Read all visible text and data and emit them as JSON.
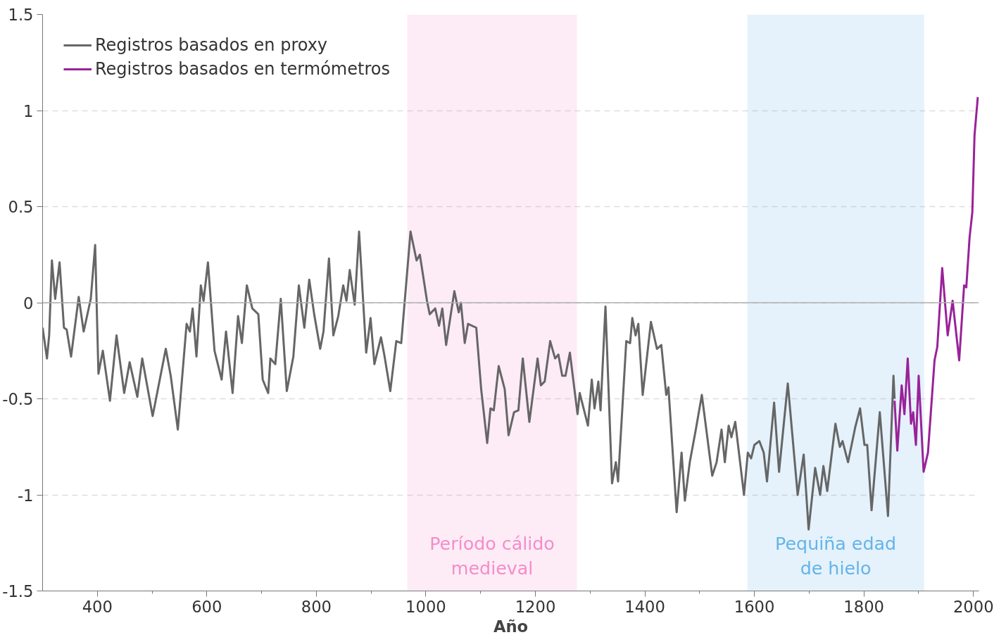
{
  "chart_data": {
    "type": "line",
    "xlabel": "Año",
    "xlim": [
      300,
      2010
    ],
    "ylim": [
      -1.5,
      1.5
    ],
    "xticks": [
      400,
      {
        "value": 500,
        "label": null
      },
      600,
      {
        "value": 700,
        "label": null
      },
      800,
      {
        "value": 900,
        "label": null
      },
      1000,
      {
        "value": 1100,
        "label": null
      },
      1200,
      {
        "value": 1300,
        "label": null
      },
      1400,
      {
        "value": 1500,
        "label": null
      },
      1600,
      {
        "value": 1700,
        "label": null
      },
      1800,
      {
        "value": 1900,
        "label": null
      },
      2000
    ],
    "yticks": [
      -1.5,
      -1,
      -0.5,
      0,
      0.5,
      1,
      1.5
    ],
    "grid": "y",
    "legend": "top left",
    "line_style": "solid",
    "marker": "none",
    "ref_lines": [
      {
        "axis": "y",
        "value": 0,
        "color": "#b0b0b0",
        "line_style": "solid"
      }
    ],
    "bands": [
      {
        "axis": "x",
        "from": 966,
        "to": 1276,
        "label": "Período cálido medieval",
        "color": "#f58ccb"
      },
      {
        "axis": "x",
        "from": 1587,
        "to": 1910,
        "label": "Pequiña edad de hielo",
        "color": "#64b4ea"
      }
    ],
    "series": [
      {
        "name": "Registros basados en proxy",
        "color": "#666666",
        "x": [
          300,
          308,
          312,
          317,
          323,
          331,
          339,
          344,
          352,
          366,
          375,
          388,
          396,
          402,
          410,
          423,
          435,
          449,
          459,
          473,
          482,
          501,
          525,
          534,
          547,
          563,
          569,
          574,
          581,
          589,
          594,
          602,
          614,
          627,
          635,
          647,
          657,
          664,
          673,
          683,
          694,
          702,
          712,
          716,
          725,
          735,
          746,
          758,
          768,
          778,
          787,
          796,
          807,
          813,
          823,
          831,
          840,
          849,
          855,
          861,
          870,
          878,
          891,
          899,
          906,
          918,
          924,
          935,
          946,
          955,
          972,
          983,
          989,
          1002,
          1007,
          1017,
          1024,
          1030,
          1037,
          1052,
          1060,
          1064,
          1071,
          1077,
          1092,
          1101,
          1112,
          1118,
          1124,
          1133,
          1144,
          1151,
          1161,
          1169,
          1177,
          1189,
          1204,
          1210,
          1217,
          1227,
          1236,
          1242,
          1249,
          1255,
          1263,
          1277,
          1281,
          1296,
          1303,
          1308,
          1315,
          1319,
          1328,
          1340,
          1347,
          1351,
          1366,
          1373,
          1377,
          1383,
          1388,
          1396,
          1411,
          1422,
          1430,
          1439,
          1443,
          1458,
          1467,
          1473,
          1482,
          1493,
          1504,
          1523,
          1531,
          1540,
          1546,
          1553,
          1558,
          1565,
          1581,
          1588,
          1594,
          1600,
          1609,
          1617,
          1623,
          1636,
          1645,
          1661,
          1679,
          1690,
          1699,
          1711,
          1720,
          1726,
          1733,
          1748,
          1756,
          1761,
          1771,
          1784,
          1793,
          1801,
          1806,
          1814,
          1829,
          1844,
          1854,
          1856
        ],
        "values": [
          -0.13,
          -0.29,
          -0.17,
          0.22,
          0.02,
          0.21,
          -0.13,
          -0.14,
          -0.28,
          0.03,
          -0.15,
          0.02,
          0.3,
          -0.37,
          -0.25,
          -0.51,
          -0.17,
          -0.47,
          -0.31,
          -0.49,
          -0.29,
          -0.59,
          -0.24,
          -0.38,
          -0.66,
          -0.11,
          -0.15,
          -0.03,
          -0.28,
          0.09,
          0.01,
          0.21,
          -0.25,
          -0.4,
          -0.15,
          -0.47,
          -0.07,
          -0.21,
          0.09,
          -0.03,
          -0.06,
          -0.4,
          -0.47,
          -0.29,
          -0.32,
          0.02,
          -0.46,
          -0.28,
          0.09,
          -0.13,
          0.12,
          -0.06,
          -0.24,
          -0.15,
          0.23,
          -0.17,
          -0.07,
          0.09,
          0.01,
          0.17,
          -0.01,
          0.37,
          -0.26,
          -0.08,
          -0.32,
          -0.18,
          -0.27,
          -0.46,
          -0.2,
          -0.21,
          0.37,
          0.22,
          0.25,
          0.01,
          -0.06,
          -0.03,
          -0.12,
          -0.03,
          -0.22,
          0.06,
          -0.05,
          0.0,
          -0.21,
          -0.11,
          -0.13,
          -0.45,
          -0.73,
          -0.55,
          -0.56,
          -0.33,
          -0.45,
          -0.69,
          -0.57,
          -0.56,
          -0.29,
          -0.62,
          -0.29,
          -0.43,
          -0.41,
          -0.2,
          -0.29,
          -0.27,
          -0.38,
          -0.38,
          -0.26,
          -0.58,
          -0.47,
          -0.64,
          -0.4,
          -0.55,
          -0.41,
          -0.56,
          -0.02,
          -0.94,
          -0.83,
          -0.93,
          -0.2,
          -0.21,
          -0.08,
          -0.17,
          -0.11,
          -0.48,
          -0.1,
          -0.24,
          -0.22,
          -0.48,
          -0.44,
          -1.09,
          -0.78,
          -1.03,
          -0.83,
          -0.66,
          -0.48,
          -0.9,
          -0.83,
          -0.66,
          -0.83,
          -0.64,
          -0.7,
          -0.62,
          -1.0,
          -0.78,
          -0.81,
          -0.74,
          -0.72,
          -0.78,
          -0.93,
          -0.52,
          -0.88,
          -0.42,
          -1.0,
          -0.79,
          -1.18,
          -0.86,
          -1.0,
          -0.85,
          -0.98,
          -0.63,
          -0.75,
          -0.72,
          -0.83,
          -0.65,
          -0.55,
          -0.74,
          -0.74,
          -1.08,
          -0.57,
          -1.11,
          -0.38,
          -0.5
        ]
      },
      {
        "name": "Registros basados en termómetros",
        "color": "#992299",
        "x": [
          1856,
          1861,
          1869,
          1874,
          1880,
          1886,
          1890,
          1895,
          1900,
          1909,
          1917,
          1929,
          1934,
          1943,
          1953,
          1962,
          1974,
          1983,
          1987,
          1993,
          1998,
          2002,
          2008
        ],
        "values": [
          -0.51,
          -0.77,
          -0.43,
          -0.58,
          -0.29,
          -0.63,
          -0.57,
          -0.74,
          -0.38,
          -0.88,
          -0.78,
          -0.3,
          -0.23,
          0.18,
          -0.17,
          0.01,
          -0.3,
          0.09,
          0.08,
          0.34,
          0.47,
          0.87,
          1.07
        ]
      }
    ]
  }
}
